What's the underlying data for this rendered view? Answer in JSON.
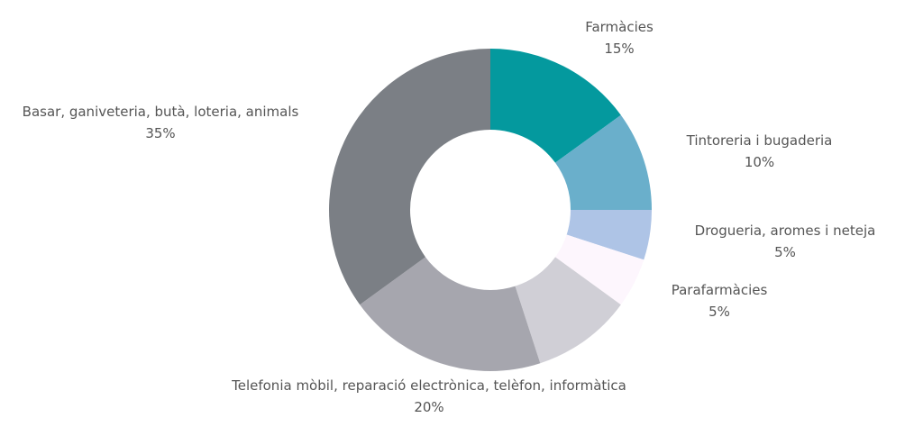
{
  "chart_data": {
    "type": "pie",
    "donut": true,
    "title": "",
    "categories": [
      "Farmàcies",
      "Tintoreria i bugaderia",
      "Drogueria, aromes i neteja",
      "Parafarmàcies",
      "",
      "Telefonia mòbil, reparació electrònica, telèfon, informàtica",
      "Basar, ganiveteria, butà, loteria, animals"
    ],
    "values": [
      15,
      10,
      5,
      5,
      10,
      20,
      35
    ],
    "value_labels": [
      "15%",
      "10%",
      "5%",
      "5%",
      "",
      "20%",
      "35%"
    ],
    "colors": [
      "#04999e",
      "#6aafcb",
      "#aec4e6",
      "#fdf6fd",
      "#d0cfd6",
      "#a6a6ae",
      "#7b7f85"
    ],
    "legend": "none"
  }
}
